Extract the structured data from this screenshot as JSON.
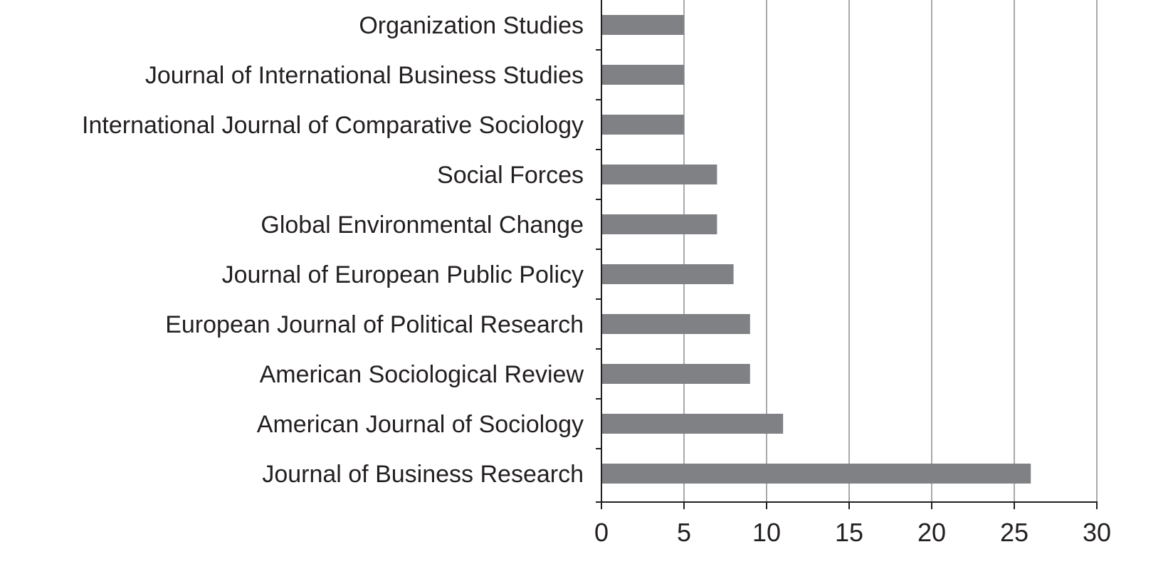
{
  "chart_data": {
    "type": "bar",
    "orientation": "horizontal",
    "title": "",
    "xlabel": "",
    "ylabel": "",
    "categories": [
      "Organization Studies",
      "Journal of International Business Studies",
      "International Journal of Comparative Sociology",
      "Social Forces",
      "Global Environmental Change",
      "Journal of European Public Policy",
      "European Journal of Political Research",
      "American Sociological Review",
      "American Journal of Sociology",
      "Journal of Business Research"
    ],
    "values": [
      5,
      5,
      5,
      7,
      7,
      8,
      9,
      9,
      11,
      26
    ],
    "xlim": [
      0,
      30
    ],
    "xticks": [
      "0",
      "5",
      "10",
      "15",
      "20",
      "25",
      "30"
    ],
    "grid": "vertical",
    "colors": {
      "bar": "#808184",
      "grid": "#a7a9ac",
      "axis": "#231f20"
    }
  }
}
